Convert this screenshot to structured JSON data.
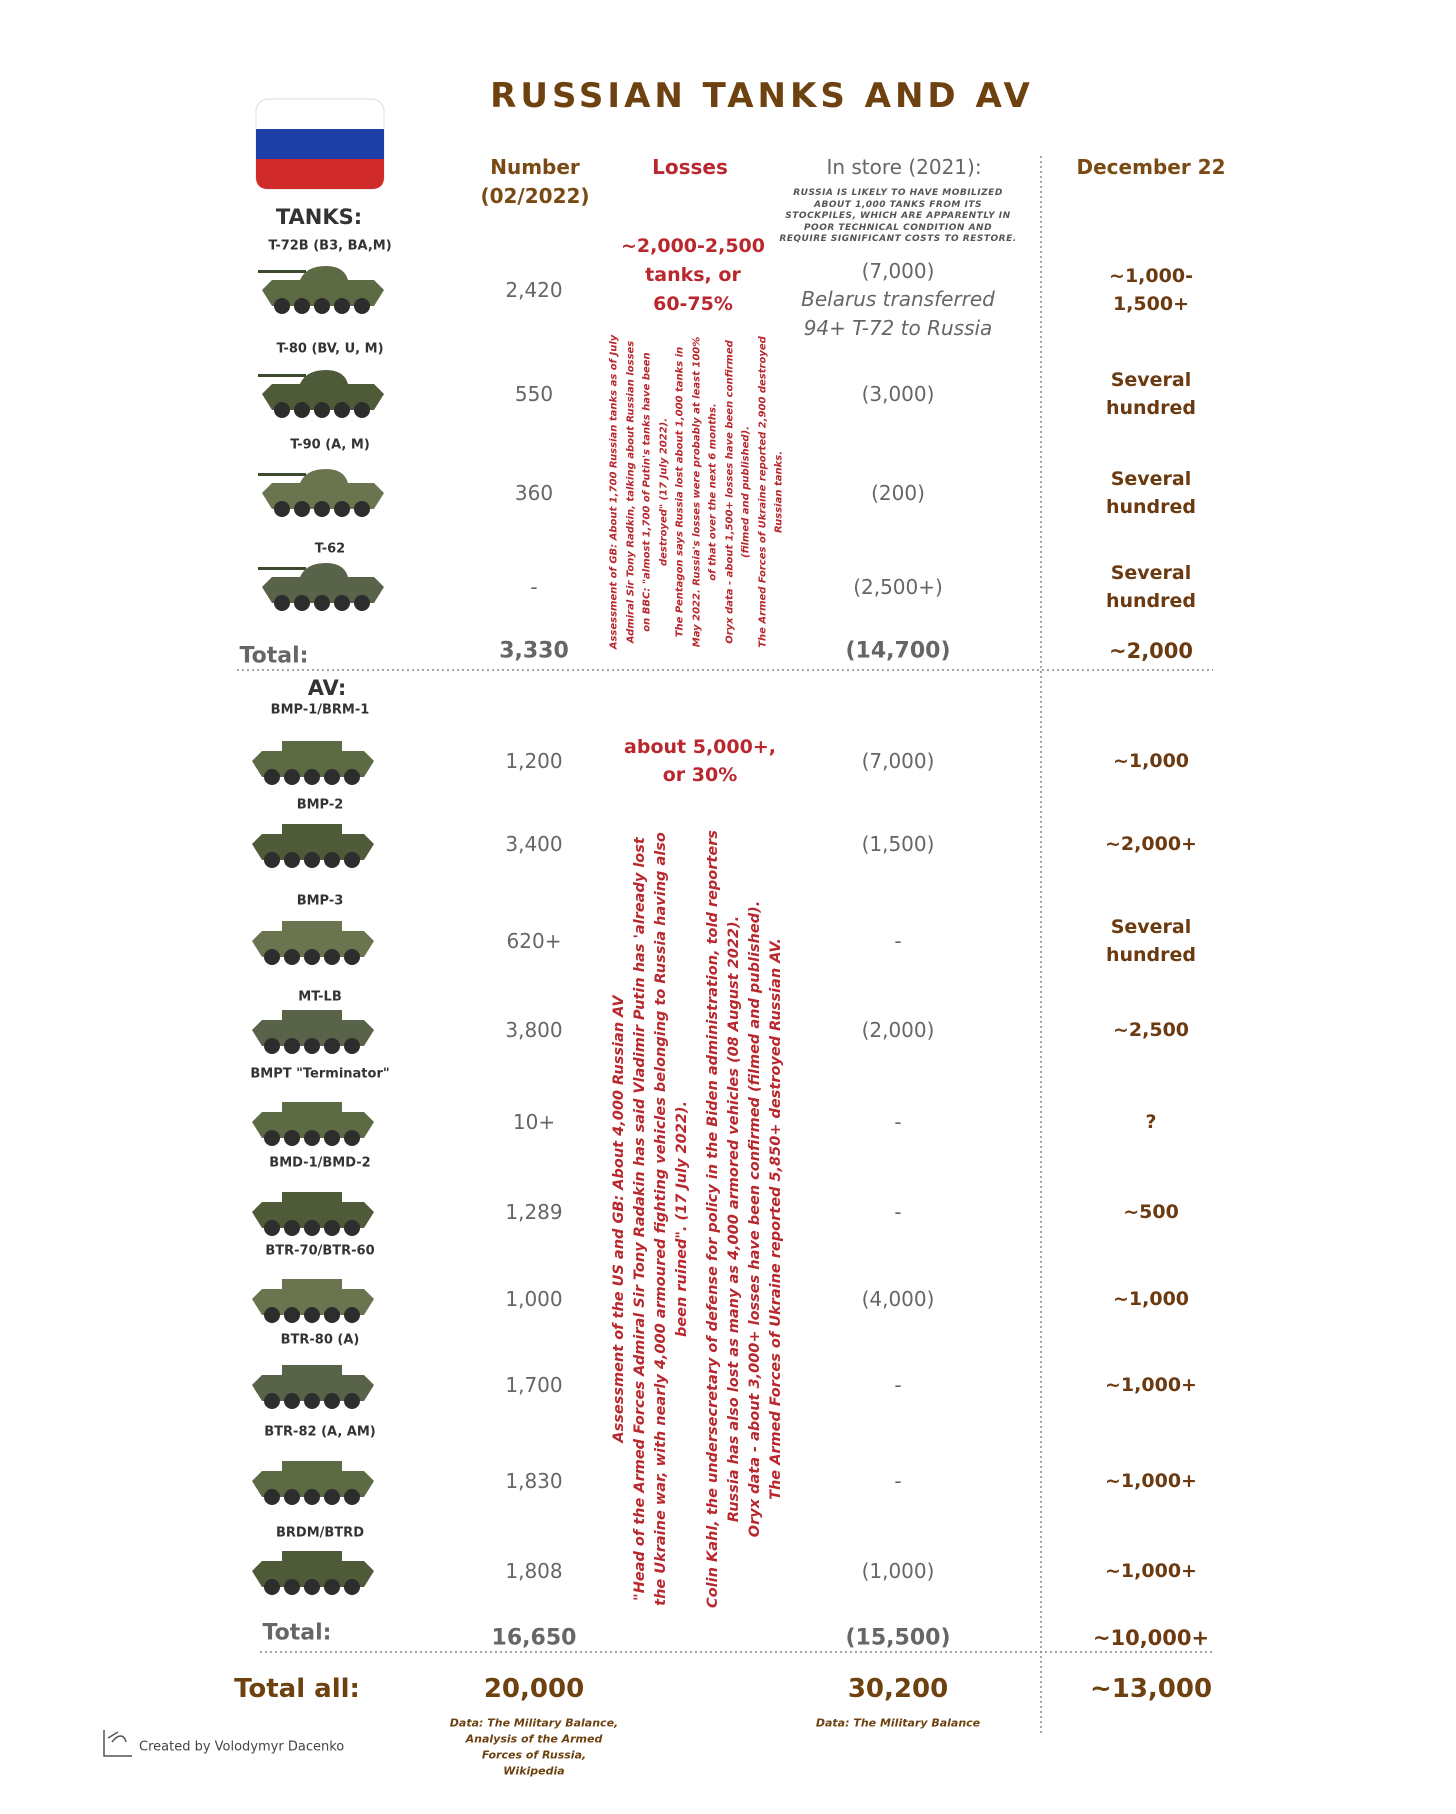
{
  "header": {
    "title": "RUSSIAN TANKS AND AV"
  },
  "columns": {
    "number": [
      "Number",
      "(02/2022)"
    ],
    "losses": "Losses",
    "store": "In store (2021):",
    "dec22": "December 22"
  },
  "store_note": [
    "RUSSIA IS LIKELY TO HAVE MOBILIZED",
    "ABOUT 1,000 TANKS FROM ITS",
    "STOCKPILES, WHICH ARE APPARENTLY IN",
    "POOR TECHNICAL CONDITION AND",
    "REQUIRE SIGNIFICANT COSTS TO RESTORE."
  ],
  "sections": [
    {
      "label": "TANKS:",
      "rows": [
        {
          "name": "T-72B (B3, BA,M)",
          "number": "2,420",
          "store": "(7,000)",
          "dec22": "~1,000-1,500+"
        },
        {
          "name": "T-80 (BV, U, M)",
          "number": "550",
          "store": "(3,000)",
          "dec22": "Several hundred"
        },
        {
          "name": "T-90 (A, M)",
          "number": "360",
          "store": "(200)",
          "dec22": "Several hundred"
        },
        {
          "name": "T-62",
          "number": "-",
          "store": "(2,500+)",
          "dec22": "Several hundred"
        }
      ],
      "store_extra": [
        "Belarus transferred",
        "94+ T-72 to Russia"
      ],
      "losses": [
        "~2,000-2,500",
        "tanks, or",
        "60-75%"
      ],
      "losses_note": [
        "Assessment of GB: About 1,700 Russian tanks as of July",
        "Admiral Sir Tony Radkin, talking about Russian losses",
        "on BBC: \"almost 1,700 of Putin's tanks have been",
        "destroyed\" (17 July 2022).",
        "The Pentagon says Russia lost about 1,000 tanks in",
        "May 2022. Russia's losses were probably at least 100%",
        "of that over the next 6 months.",
        "Oryx data - about 1,500+ losses have been confirmed",
        "(filmed and published).",
        "The Armed Forces of Ukraine reported 2,900 destroyed",
        "Russian tanks."
      ],
      "total_label": "Total:",
      "total": {
        "number": "3,330",
        "store": "(14,700)",
        "dec22": "~2,000"
      }
    },
    {
      "label": "AV:",
      "rows": [
        {
          "name": "BMP-1/BRM-1",
          "number": "1,200",
          "store": "(7,000)",
          "dec22": "~1,000"
        },
        {
          "name": "BMP-2",
          "number": "3,400",
          "store": "(1,500)",
          "dec22": "~2,000+"
        },
        {
          "name": "BMP-3",
          "number": "620+",
          "store": "-",
          "dec22": "Several hundred"
        },
        {
          "name": "MT-LB",
          "number": "3,800",
          "store": "(2,000)",
          "dec22": "~2,500"
        },
        {
          "name": "BMPT \"Terminator\"",
          "number": "10+",
          "store": "-",
          "dec22": "?"
        },
        {
          "name": "BMD-1/BMD-2",
          "number": "1,289",
          "store": "-",
          "dec22": "~500"
        },
        {
          "name": "BTR-70/BTR-60",
          "number": "1,000",
          "store": "(4,000)",
          "dec22": "~1,000"
        },
        {
          "name": "BTR-80 (A)",
          "number": "1,700",
          "store": "-",
          "dec22": "~1,000+"
        },
        {
          "name": "BTR-82 (A, AM)",
          "number": "1,830",
          "store": "-",
          "dec22": "~1,000+"
        },
        {
          "name": "BRDM/BTRD",
          "number": "1,808",
          "store": "(1,000)",
          "dec22": "~1,000+"
        }
      ],
      "losses": [
        "about 5,000+,",
        "or 30%"
      ],
      "losses_note": [
        "Assessment of the US and GB: About 4,000 Russian AV",
        "\"Head of the Armed Forces Admiral Sir Tony Radakin has said Vladimir Putin has 'already lost",
        "the Ukraine war, with nearly 4,000 armoured fighting vehicles belonging to Russia having also",
        "been ruined\". (17 July 2022).",
        "Colin Kahl, the undersecretary of defense for policy in the Biden administration, told reporters",
        "Russia has also lost as many as 4,000 armored vehicles (08 August 2022).",
        "Oryx data - about 3,000+ losses have been confirmed (filmed and published).",
        "The Armed Forces of Ukraine reported 5,850+ destroyed Russian AV."
      ],
      "total_label": "Total:",
      "total": {
        "number": "16,650",
        "store": "(15,500)",
        "dec22": "~10,000+"
      }
    }
  ],
  "total_all": {
    "label": "Total all:",
    "number": "20,000",
    "store": "30,200",
    "dec22": "~13,000"
  },
  "sources": {
    "number": [
      "Data: The Military Balance,",
      "Analysis of the Armed",
      "Forces of Russia,",
      "Wikipedia"
    ],
    "store": "Data: The Military Balance"
  },
  "credit": "Created by Volodymyr Dacenko"
}
